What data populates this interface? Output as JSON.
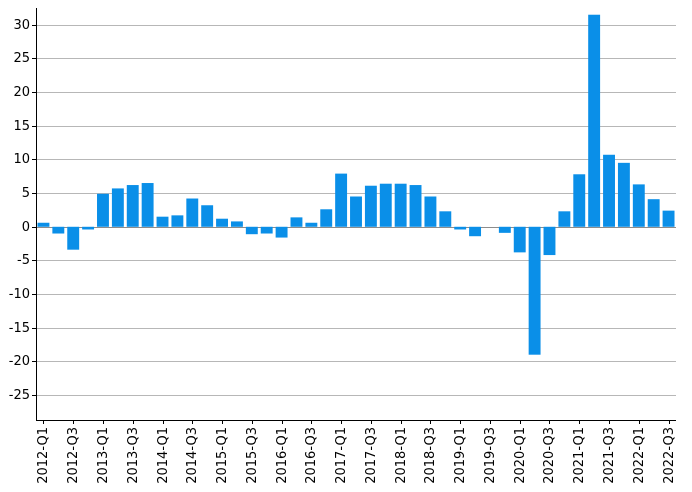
{
  "chart_data": {
    "type": "bar",
    "title": "",
    "xlabel": "",
    "ylabel": "",
    "ylim": [
      -28.7,
      32.5
    ],
    "yticks": [
      30,
      25,
      20,
      15,
      10,
      5,
      0,
      -5,
      -10,
      -15,
      -20,
      -25
    ],
    "ytick_labels": [
      "30",
      "25",
      "20",
      "15",
      "10",
      "5",
      "0",
      "-5",
      "-10",
      "-15",
      "-20",
      "-25"
    ],
    "grid": true,
    "legend": "none",
    "bar_color": "#0a8fe8",
    "categories": [
      "2012-Q1",
      "2012-Q2",
      "2012-Q3",
      "2012-Q4",
      "2013-Q1",
      "2013-Q2",
      "2013-Q3",
      "2013-Q4",
      "2014-Q1",
      "2014-Q2",
      "2014-Q3",
      "2014-Q4",
      "2015-Q1",
      "2015-Q2",
      "2015-Q3",
      "2015-Q4",
      "2016-Q1",
      "2016-Q2",
      "2016-Q3",
      "2016-Q4",
      "2017-Q1",
      "2017-Q2",
      "2017-Q3",
      "2017-Q4",
      "2018-Q1",
      "2018-Q2",
      "2018-Q3",
      "2018-Q4",
      "2019-Q1",
      "2019-Q2",
      "2019-Q3",
      "2019-Q4",
      "2020-Q1",
      "2020-Q2",
      "2020-Q3",
      "2020-Q4",
      "2021-Q1",
      "2021-Q2",
      "2021-Q3",
      "2021-Q4",
      "2022-Q1",
      "2022-Q2",
      "2022-Q3"
    ],
    "values": [
      0.6,
      -1.0,
      -3.4,
      -0.4,
      4.9,
      5.7,
      6.2,
      6.5,
      1.5,
      1.7,
      4.2,
      3.2,
      1.2,
      0.8,
      -1.1,
      -1.0,
      -1.6,
      1.4,
      0.6,
      2.6,
      7.9,
      4.5,
      6.1,
      6.4,
      6.4,
      6.2,
      4.5,
      2.3,
      -0.4,
      -1.4,
      0.0,
      -0.9,
      -3.8,
      -19.0,
      -4.2,
      2.3,
      7.8,
      31.5,
      10.7,
      9.5,
      6.3,
      4.1,
      2.4
    ],
    "xtick_labels": [
      "2012-Q1",
      "2012-Q3",
      "2013-Q1",
      "2013-Q3",
      "2014-Q1",
      "2014-Q3",
      "2015-Q1",
      "2015-Q3",
      "2016-Q1",
      "2016-Q3",
      "2017-Q1",
      "2017-Q3",
      "2018-Q1",
      "2018-Q3",
      "2019-Q1",
      "2019-Q3",
      "2020-Q1",
      "2020-Q3",
      "2021-Q1",
      "2021-Q3",
      "2022-Q1",
      "2022-Q3"
    ]
  }
}
